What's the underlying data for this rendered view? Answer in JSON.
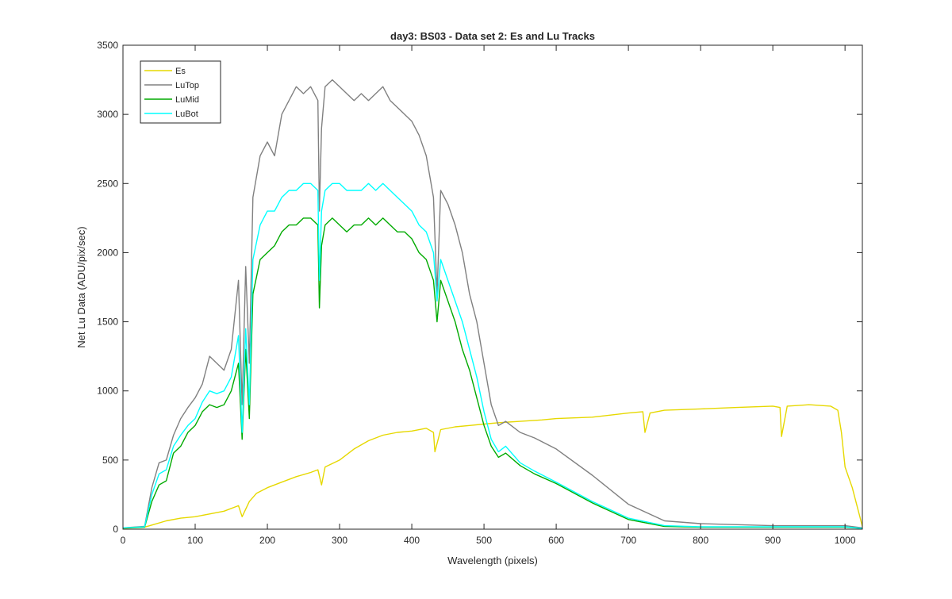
{
  "chart_data": {
    "type": "line",
    "title": "day3: BS03 - Data set 2: Es and Lu Tracks",
    "xlabel": "Wavelength (pixels)",
    "ylabel": "Net Lu Data (ADU/pix/sec)",
    "xlim": [
      0,
      1024
    ],
    "ylim": [
      0,
      3500
    ],
    "xticks": [
      0,
      100,
      200,
      300,
      400,
      500,
      600,
      700,
      800,
      900,
      1000
    ],
    "yticks": [
      0,
      500,
      1000,
      1500,
      2000,
      2500,
      3000,
      3500
    ],
    "grid": false,
    "legend_position": "top-left",
    "series": [
      {
        "name": "Es",
        "color": "#e6d800",
        "x": [
          0,
          30,
          40,
          60,
          80,
          100,
          120,
          140,
          160,
          165,
          175,
          185,
          200,
          220,
          240,
          260,
          270,
          275,
          280,
          300,
          320,
          340,
          360,
          380,
          400,
          420,
          430,
          432,
          440,
          460,
          480,
          500,
          520,
          550,
          580,
          600,
          650,
          700,
          720,
          723,
          730,
          750,
          800,
          850,
          900,
          910,
          912,
          920,
          950,
          980,
          990,
          995,
          1000,
          1010,
          1020,
          1024
        ],
        "y": [
          5,
          15,
          30,
          60,
          80,
          90,
          110,
          130,
          170,
          90,
          200,
          260,
          300,
          340,
          380,
          410,
          430,
          320,
          450,
          500,
          580,
          640,
          680,
          700,
          710,
          730,
          700,
          560,
          720,
          740,
          750,
          760,
          770,
          780,
          790,
          800,
          810,
          840,
          850,
          700,
          840,
          860,
          870,
          880,
          890,
          880,
          670,
          890,
          900,
          890,
          860,
          700,
          450,
          300,
          100,
          20
        ]
      },
      {
        "name": "LuTop",
        "color": "#808080",
        "x": [
          0,
          30,
          40,
          50,
          60,
          70,
          80,
          90,
          100,
          110,
          120,
          130,
          140,
          150,
          160,
          165,
          170,
          175,
          180,
          190,
          200,
          210,
          220,
          230,
          240,
          250,
          260,
          270,
          272,
          275,
          280,
          290,
          300,
          310,
          320,
          330,
          340,
          350,
          360,
          370,
          380,
          390,
          400,
          410,
          420,
          430,
          435,
          440,
          450,
          460,
          470,
          480,
          490,
          500,
          510,
          520,
          530,
          550,
          570,
          600,
          650,
          700,
          750,
          800,
          900,
          1000,
          1024
        ],
        "y": [
          10,
          20,
          300,
          480,
          500,
          680,
          800,
          880,
          950,
          1050,
          1250,
          1200,
          1150,
          1300,
          1800,
          900,
          1900,
          1200,
          2400,
          2700,
          2800,
          2700,
          3000,
          3100,
          3200,
          3150,
          3200,
          3100,
          2300,
          2900,
          3200,
          3250,
          3200,
          3150,
          3100,
          3150,
          3100,
          3150,
          3200,
          3100,
          3050,
          3000,
          2950,
          2850,
          2700,
          2400,
          1700,
          2450,
          2350,
          2200,
          2000,
          1700,
          1500,
          1200,
          900,
          750,
          780,
          700,
          660,
          580,
          390,
          180,
          60,
          40,
          25,
          25,
          10
        ]
      },
      {
        "name": "LuMid",
        "color": "#00aa00",
        "x": [
          0,
          30,
          40,
          50,
          60,
          70,
          80,
          90,
          100,
          110,
          120,
          130,
          140,
          150,
          160,
          165,
          170,
          175,
          180,
          190,
          200,
          210,
          220,
          230,
          240,
          250,
          260,
          270,
          272,
          275,
          280,
          290,
          300,
          310,
          320,
          330,
          340,
          350,
          360,
          370,
          380,
          390,
          400,
          410,
          420,
          430,
          435,
          440,
          450,
          460,
          470,
          480,
          490,
          500,
          510,
          520,
          530,
          550,
          570,
          600,
          650,
          700,
          750,
          800,
          900,
          1000,
          1024
        ],
        "y": [
          8,
          15,
          200,
          320,
          350,
          550,
          600,
          700,
          750,
          850,
          900,
          880,
          900,
          1000,
          1200,
          650,
          1300,
          800,
          1700,
          1950,
          2000,
          2050,
          2150,
          2200,
          2200,
          2250,
          2250,
          2200,
          1600,
          2050,
          2200,
          2250,
          2200,
          2150,
          2200,
          2200,
          2250,
          2200,
          2250,
          2200,
          2150,
          2150,
          2100,
          2000,
          1950,
          1800,
          1500,
          1800,
          1650,
          1500,
          1300,
          1150,
          950,
          750,
          600,
          520,
          550,
          460,
          400,
          330,
          190,
          70,
          20,
          15,
          15,
          15,
          5
        ]
      },
      {
        "name": "LuBot",
        "color": "#00ffff",
        "x": [
          0,
          30,
          40,
          50,
          60,
          70,
          80,
          90,
          100,
          110,
          120,
          130,
          140,
          150,
          160,
          165,
          170,
          175,
          180,
          190,
          200,
          210,
          220,
          230,
          240,
          250,
          260,
          270,
          272,
          275,
          280,
          290,
          300,
          310,
          320,
          330,
          340,
          350,
          360,
          370,
          380,
          390,
          400,
          410,
          420,
          430,
          435,
          440,
          450,
          460,
          470,
          480,
          490,
          500,
          510,
          520,
          530,
          550,
          570,
          600,
          650,
          700,
          750,
          800,
          900,
          1000,
          1024
        ],
        "y": [
          9,
          18,
          250,
          400,
          430,
          600,
          680,
          750,
          800,
          920,
          1000,
          980,
          1000,
          1100,
          1400,
          700,
          1450,
          900,
          1950,
          2200,
          2300,
          2300,
          2400,
          2450,
          2450,
          2500,
          2500,
          2450,
          1800,
          2300,
          2450,
          2500,
          2500,
          2450,
          2450,
          2450,
          2500,
          2450,
          2500,
          2450,
          2400,
          2350,
          2300,
          2200,
          2150,
          2000,
          1650,
          1950,
          1800,
          1650,
          1500,
          1300,
          1100,
          850,
          650,
          560,
          600,
          480,
          420,
          340,
          200,
          80,
          25,
          18,
          18,
          18,
          5
        ]
      }
    ]
  }
}
